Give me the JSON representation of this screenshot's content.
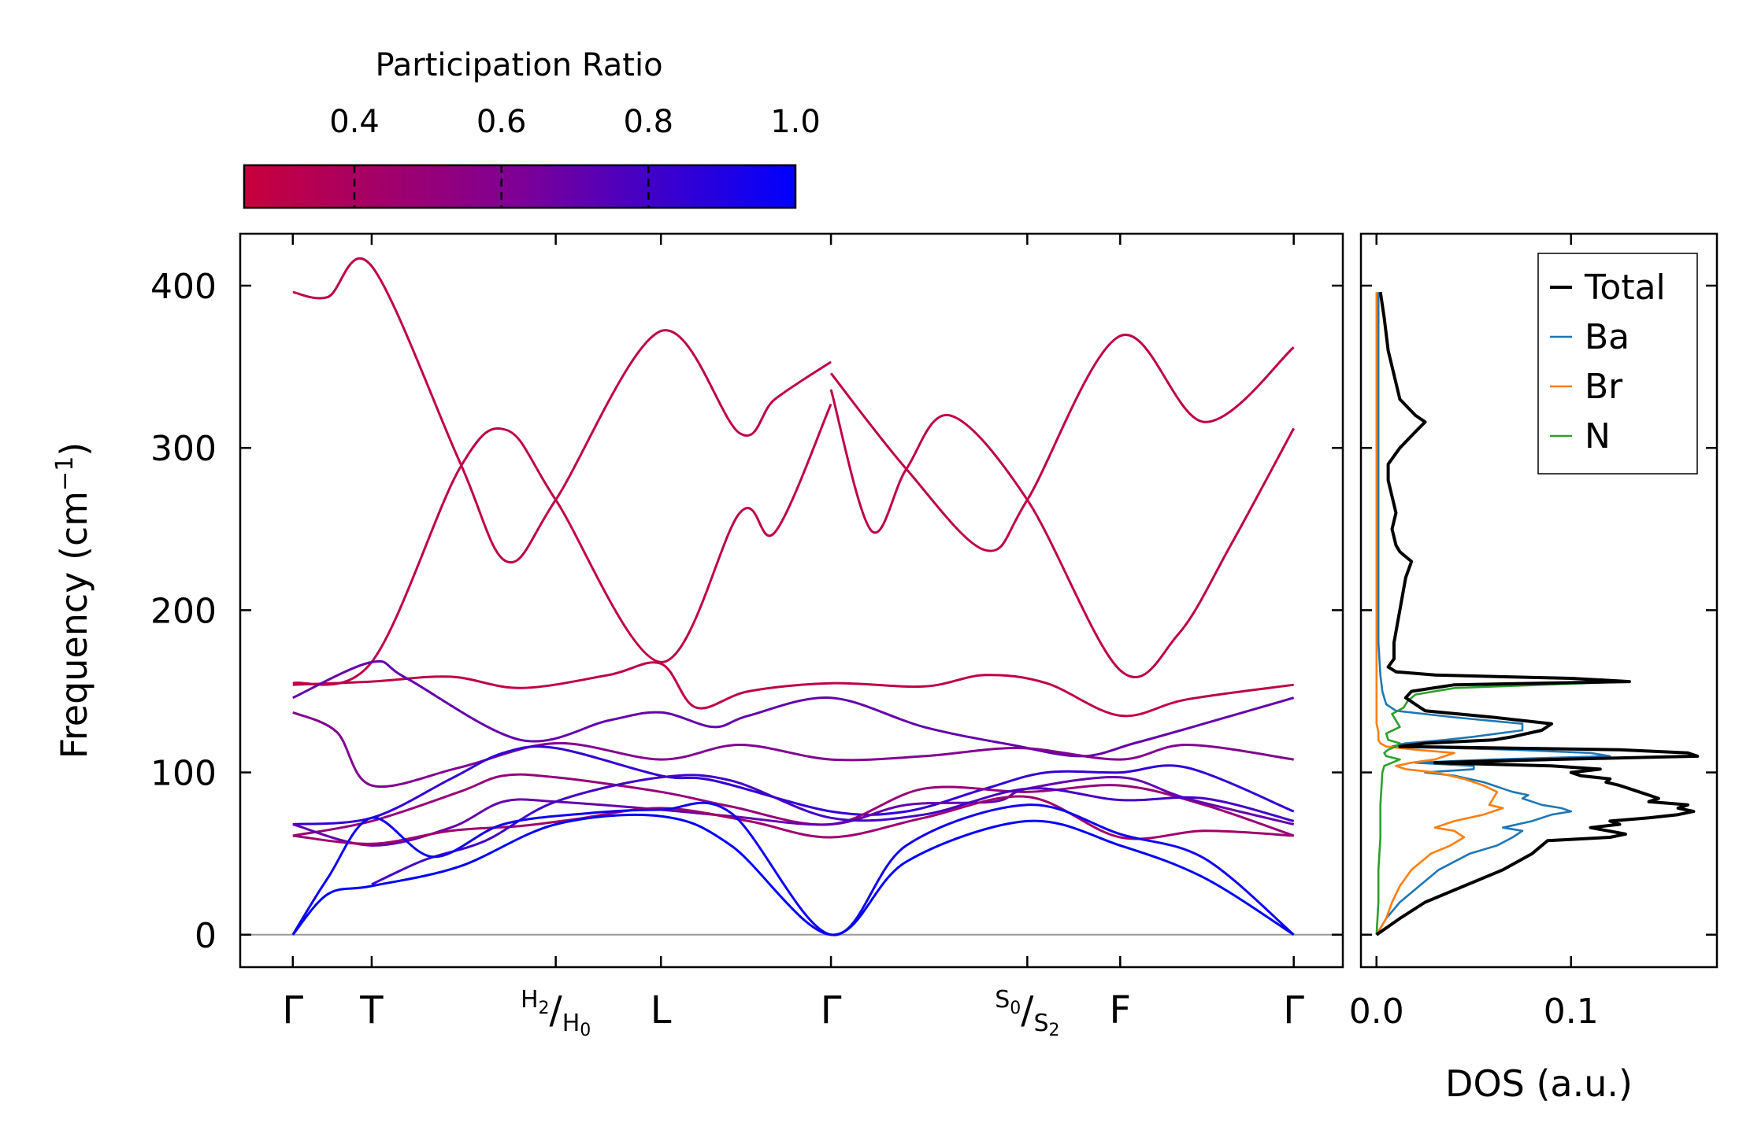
{
  "chart_data": [
    {
      "type": "line",
      "name": "phonon-dispersion",
      "ylabel": "Frequency (cm",
      "ylabel_sup": "−1",
      "ylabel_close": ")",
      "ylim": [
        -20,
        432
      ],
      "yticks": [
        0,
        100,
        200,
        300,
        400
      ],
      "ytick_labels": [
        "0",
        "100",
        "200",
        "300",
        "400"
      ],
      "xlim": [
        -0.3,
        5.99
      ],
      "q_points": [
        {
          "x": 0.0,
          "label": "Γ"
        },
        {
          "x": 0.45,
          "label": "T"
        },
        {
          "x": 1.5,
          "label": "H₂/H₀",
          "sup": "H",
          "sup_sub": "2",
          "main": "H",
          "main_sub": "0"
        },
        {
          "x": 2.1,
          "label": "L"
        },
        {
          "x": 3.07,
          "label": "Γ"
        },
        {
          "x": 4.19,
          "label": "S₀/S₂",
          "sup": "S",
          "sup_sub": "0",
          "main": "S",
          "main_sub": "2"
        },
        {
          "x": 4.72,
          "label": "F"
        },
        {
          "x": 5.71,
          "label": "Γ"
        }
      ],
      "colorbar": {
        "title": "Participation Ratio",
        "range": [
          0.25,
          1.0
        ],
        "ticks": [
          0.4,
          0.6,
          0.8,
          1.0
        ],
        "tick_labels": [
          "0.4",
          "0.6",
          "0.8",
          "1.0"
        ],
        "color_low": "#c8003c",
        "color_mid": "#7d0096",
        "color_high": "#0000ff"
      },
      "zero_line_color": "#999999",
      "bands": [
        {
          "pr": 0.3,
          "x": [
            0,
            0.2,
            0.45,
            0.95,
            1.22,
            1.5,
            2.1,
            2.55,
            2.75,
            3.07
          ],
          "y": [
            396,
            393,
            412,
            292,
            230,
            268,
            372,
            309,
            330,
            353
          ]
        },
        {
          "pr": 0.3,
          "x": [
            0,
            0.45,
            0.95,
            1.22,
            1.5,
            2.1,
            2.55,
            2.75,
            3.07
          ],
          "y": [
            155,
            168,
            287,
            311,
            268,
            168,
            260,
            248,
            327
          ]
        },
        {
          "pr": 0.3,
          "x": [
            3.07,
            3.5,
            3.95,
            4.19,
            4.72,
            5.2,
            5.71
          ],
          "y": [
            346,
            287,
            237,
            268,
            369,
            316,
            362
          ]
        },
        {
          "pr": 0.3,
          "x": [
            3.07,
            3.3,
            3.5,
            3.75,
            4.19,
            4.72,
            5.05,
            5.35,
            5.71
          ],
          "y": [
            336,
            249,
            287,
            320,
            268,
            163,
            185,
            240,
            312
          ]
        },
        {
          "pr": 0.3,
          "x": [
            0,
            0.45,
            0.9,
            1.3,
            1.8,
            2.1,
            2.3,
            2.6,
            3.07,
            3.6,
            3.95,
            4.3,
            4.72,
            5.1,
            5.71
          ],
          "y": [
            154,
            156,
            159,
            152,
            160,
            167,
            140,
            150,
            155,
            153,
            160,
            155,
            135,
            145,
            154
          ]
        },
        {
          "pr": 0.7,
          "x": [
            0,
            0.45,
            0.65,
            1.3,
            1.8,
            2.1,
            2.4,
            2.6,
            3.07,
            3.6,
            4.1,
            4.5,
            4.8,
            5.1,
            5.71
          ],
          "y": [
            146,
            168,
            158,
            120,
            132,
            137,
            128,
            135,
            146,
            128,
            117,
            110,
            118,
            127,
            146
          ]
        },
        {
          "pr": 0.6,
          "x": [
            0,
            0.25,
            0.45,
            0.95,
            1.5,
            2.1,
            2.55,
            3.07,
            3.6,
            4.15,
            4.72,
            5.1,
            5.71
          ],
          "y": [
            137,
            125,
            92,
            103,
            118,
            108,
            117,
            108,
            110,
            115,
            108,
            117,
            108
          ]
        },
        {
          "pr": 0.85,
          "x": [
            0,
            0.45,
            0.9,
            1.2,
            1.5,
            2.1,
            2.4,
            3.07,
            3.5,
            3.95,
            4.3,
            4.72,
            5.1,
            5.71
          ],
          "y": [
            68,
            72,
            96,
            112,
            115,
            98,
            95,
            76,
            76,
            90,
            100,
            100,
            103,
            76
          ]
        },
        {
          "pr": 0.5,
          "x": [
            0,
            0.45,
            0.95,
            1.2,
            1.5,
            2.1,
            2.5,
            3.07,
            3.6,
            4.19,
            4.72,
            5.2,
            5.71
          ],
          "y": [
            61,
            70,
            88,
            98,
            97,
            88,
            79,
            68,
            90,
            88,
            92,
            80,
            61
          ]
        },
        {
          "pr": 0.7,
          "x": [
            0,
            0.45,
            0.9,
            1.2,
            1.5,
            2.1,
            2.5,
            3.07,
            3.5,
            4.0,
            4.19,
            4.72,
            5.1,
            5.71
          ],
          "y": [
            68,
            55,
            66,
            82,
            82,
            77,
            73,
            68,
            80,
            82,
            90,
            97,
            84,
            68
          ]
        },
        {
          "pr": 0.45,
          "x": [
            0,
            0.45,
            0.9,
            1.3,
            1.6,
            2.1,
            2.6,
            3.07,
            3.6,
            4.19,
            4.72,
            5.2,
            5.71
          ],
          "y": [
            61,
            56,
            64,
            67,
            71,
            78,
            70,
            60,
            72,
            85,
            60,
            64,
            61
          ]
        },
        {
          "pr": 0.8,
          "x": [
            0.45,
            0.75,
            1.1,
            1.5,
            2.1,
            2.5,
            3.07,
            3.6,
            4.19,
            4.72,
            5.2,
            5.71
          ],
          "y": [
            31,
            46,
            58,
            82,
            97,
            95,
            72,
            74,
            90,
            83,
            84,
            70
          ]
        },
        {
          "pr": 0.95,
          "x": [
            0,
            0.2,
            0.45,
            0.8,
            1.2,
            1.7,
            2.1,
            2.5,
            3.07,
            3.5,
            4.19,
            4.72,
            5.2,
            5.71
          ],
          "y": [
            0,
            35,
            72,
            48,
            68,
            75,
            77,
            75,
            0,
            55,
            80,
            62,
            47,
            0
          ]
        },
        {
          "pr": 1.0,
          "x": [
            0,
            0.2,
            0.45,
            0.95,
            1.5,
            2.1,
            2.5,
            3.07,
            3.5,
            4.19,
            4.72,
            5.2,
            5.71
          ],
          "y": [
            0,
            25,
            30,
            42,
            68,
            73,
            55,
            0,
            45,
            70,
            55,
            35,
            0
          ]
        }
      ]
    },
    {
      "type": "line",
      "name": "phonon-dos",
      "xlabel": "DOS (a.u.)",
      "xlim": [
        -0.008,
        0.175
      ],
      "ylim": [
        -20,
        432
      ],
      "xticks": [
        0.0,
        0.1
      ],
      "xtick_labels": [
        "0.0",
        "0.1"
      ],
      "legend_position": "top-right",
      "series": [
        {
          "name": "Total",
          "color": "#000000",
          "freq": [
            0,
            5,
            10,
            20,
            30,
            40,
            50,
            58,
            60,
            62,
            66,
            68,
            70,
            72,
            74,
            76,
            78,
            80,
            82,
            84,
            86,
            88,
            90,
            92,
            94,
            96,
            98,
            100,
            102,
            104,
            106,
            108,
            110,
            112,
            114,
            116,
            118,
            120,
            122,
            126,
            130,
            134,
            138,
            142,
            146,
            150,
            154,
            156,
            158,
            160,
            162,
            165,
            170,
            180,
            200,
            220,
            230,
            236,
            240,
            250,
            260,
            280,
            290,
            300,
            310,
            316,
            320,
            330,
            340,
            360,
            380,
            396
          ],
          "dos": [
            0,
            0.006,
            0.012,
            0.025,
            0.045,
            0.065,
            0.08,
            0.088,
            0.12,
            0.128,
            0.11,
            0.125,
            0.12,
            0.14,
            0.155,
            0.163,
            0.155,
            0.16,
            0.14,
            0.145,
            0.14,
            0.135,
            0.13,
            0.125,
            0.118,
            0.12,
            0.105,
            0.1,
            0.115,
            0.09,
            0.03,
            0.09,
            0.165,
            0.16,
            0.125,
            0.012,
            0.025,
            0.06,
            0.07,
            0.085,
            0.09,
            0.06,
            0.025,
            0.02,
            0.015,
            0.018,
            0.04,
            0.13,
            0.1,
            0.03,
            0.01,
            0.006,
            0.009,
            0.009,
            0.012,
            0.015,
            0.018,
            0.012,
            0.01,
            0.008,
            0.01,
            0.006,
            0.006,
            0.012,
            0.02,
            0.025,
            0.02,
            0.012,
            0.01,
            0.006,
            0.004,
            0.002
          ]
        },
        {
          "name": "Ba",
          "color": "#1f77b4",
          "freq": [
            0,
            10,
            20,
            30,
            40,
            50,
            55,
            60,
            64,
            66,
            70,
            74,
            76,
            78,
            80,
            82,
            84,
            86,
            88,
            90,
            94,
            98,
            100,
            102,
            104,
            106,
            108,
            110,
            112,
            114,
            116,
            118,
            120,
            122,
            126,
            130,
            134,
            138,
            142,
            146,
            150,
            160,
            180,
            250,
            396
          ],
          "dos": [
            0,
            0.005,
            0.012,
            0.022,
            0.032,
            0.048,
            0.062,
            0.07,
            0.075,
            0.065,
            0.08,
            0.09,
            0.1,
            0.095,
            0.085,
            0.08,
            0.075,
            0.078,
            0.07,
            0.065,
            0.055,
            0.04,
            0.025,
            0.05,
            0.05,
            0.02,
            0.06,
            0.12,
            0.11,
            0.07,
            0.008,
            0.015,
            0.035,
            0.05,
            0.075,
            0.075,
            0.04,
            0.01,
            0.005,
            0.004,
            0.003,
            0.002,
            0.001,
            0.001,
            0.001
          ]
        },
        {
          "name": "Br",
          "color": "#ff7f0e",
          "freq": [
            0,
            10,
            20,
            30,
            40,
            50,
            55,
            60,
            64,
            66,
            70,
            74,
            78,
            80,
            84,
            88,
            92,
            96,
            98,
            100,
            102,
            104,
            106,
            108,
            110,
            112,
            114,
            116,
            118,
            120,
            125,
            130,
            140,
            160,
            200,
            396
          ],
          "dos": [
            0,
            0.005,
            0.008,
            0.012,
            0.018,
            0.028,
            0.038,
            0.045,
            0.04,
            0.03,
            0.04,
            0.055,
            0.065,
            0.058,
            0.06,
            0.062,
            0.055,
            0.045,
            0.038,
            0.03,
            0.015,
            0.01,
            0.018,
            0.03,
            0.035,
            0.04,
            0.02,
            0.005,
            0.002,
            0.001,
            0.001,
            0.0,
            0.0,
            0.0,
            0.0,
            0.0
          ]
        },
        {
          "name": "N",
          "color": "#2ca02c",
          "freq": [
            0,
            20,
            40,
            60,
            80,
            100,
            104,
            106,
            108,
            110,
            112,
            114,
            116,
            118,
            120,
            124,
            128,
            132,
            136,
            140,
            144,
            148,
            152,
            156,
            158,
            160,
            162,
            165,
            170,
            180,
            200,
            220,
            230,
            236,
            240,
            250,
            260,
            280,
            290,
            300,
            310,
            316,
            320,
            330,
            340,
            360,
            380,
            396
          ],
          "dos": [
            0,
            0.001,
            0.001,
            0.002,
            0.002,
            0.003,
            0.004,
            0.008,
            0.012,
            0.005,
            0.004,
            0.006,
            0.01,
            0.012,
            0.006,
            0.005,
            0.012,
            0.01,
            0.008,
            0.014,
            0.016,
            0.02,
            0.04,
            0.13,
            0.1,
            0.03,
            0.01,
            0.006,
            0.009,
            0.009,
            0.012,
            0.015,
            0.018,
            0.012,
            0.01,
            0.008,
            0.01,
            0.006,
            0.006,
            0.012,
            0.02,
            0.025,
            0.02,
            0.012,
            0.01,
            0.006,
            0.004,
            0.002
          ]
        }
      ]
    }
  ]
}
